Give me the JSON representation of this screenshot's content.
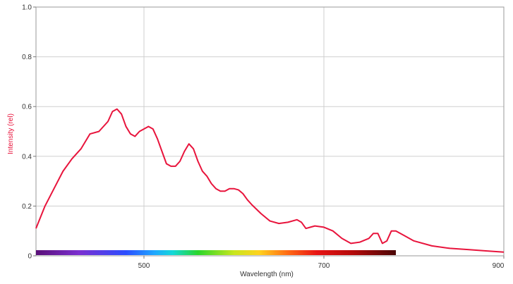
{
  "chart_data": {
    "type": "line",
    "xlabel": "Wavelength (nm)",
    "ylabel": "Intensity (rel)",
    "xlim": [
      380,
      900
    ],
    "ylim": [
      0,
      1.0
    ],
    "x_ticks": [
      500,
      700,
      900
    ],
    "y_ticks": [
      0,
      0.2,
      0.4,
      0.6,
      0.8,
      1.0
    ],
    "x_tick_labels": [
      "500",
      "700",
      "900"
    ],
    "y_tick_labels": [
      "0",
      "0.2",
      "0.4",
      "0.6",
      "0.8",
      "1.0"
    ],
    "grid": true,
    "spectrum_bar": {
      "from": 380,
      "to": 780
    },
    "series": [
      {
        "color": "#e8143c",
        "x": [
          380,
          390,
          400,
          410,
          420,
          430,
          440,
          450,
          460,
          465,
          470,
          475,
          480,
          485,
          490,
          495,
          500,
          505,
          510,
          515,
          520,
          525,
          530,
          535,
          540,
          545,
          550,
          555,
          560,
          565,
          570,
          575,
          580,
          585,
          590,
          595,
          600,
          605,
          610,
          615,
          620,
          630,
          640,
          650,
          660,
          670,
          675,
          680,
          685,
          690,
          700,
          710,
          720,
          730,
          740,
          750,
          755,
          760,
          765,
          770,
          775,
          780,
          790,
          800,
          820,
          840,
          860,
          880,
          900
        ],
        "y": [
          0.11,
          0.2,
          0.27,
          0.34,
          0.39,
          0.43,
          0.49,
          0.5,
          0.54,
          0.58,
          0.59,
          0.57,
          0.52,
          0.49,
          0.48,
          0.5,
          0.51,
          0.52,
          0.51,
          0.47,
          0.42,
          0.37,
          0.36,
          0.36,
          0.38,
          0.42,
          0.45,
          0.43,
          0.38,
          0.34,
          0.32,
          0.29,
          0.27,
          0.26,
          0.26,
          0.27,
          0.27,
          0.265,
          0.25,
          0.225,
          0.205,
          0.17,
          0.14,
          0.13,
          0.135,
          0.145,
          0.135,
          0.11,
          0.115,
          0.12,
          0.115,
          0.1,
          0.07,
          0.05,
          0.055,
          0.07,
          0.09,
          0.09,
          0.05,
          0.06,
          0.1,
          0.1,
          0.08,
          0.06,
          0.04,
          0.03,
          0.025,
          0.02,
          0.015
        ]
      }
    ]
  }
}
